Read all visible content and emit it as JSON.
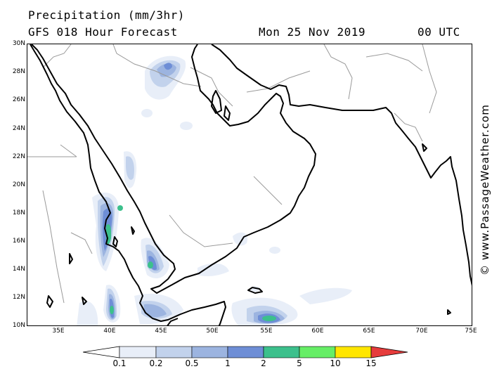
{
  "header": {
    "title": "Precipitation (mm/3hr)",
    "model": "GFS 018 Hour Forecast",
    "date": "Mon 25 Nov 2019",
    "time": "00 UTC"
  },
  "map": {
    "lat_labels": [
      "30N",
      "28N",
      "26N",
      "24N",
      "22N",
      "20N",
      "18N",
      "16N",
      "14N",
      "12N",
      "10N"
    ],
    "lon_labels": [
      "35E",
      "40E",
      "45E",
      "50E",
      "55E",
      "60E",
      "65E",
      "70E",
      "75E"
    ],
    "lat_range": [
      10,
      30
    ],
    "lon_range": [
      31.5,
      75
    ],
    "colors": {
      "land_border": "#000000",
      "political_border": "#9a9a9a",
      "precip_0_1": "#e8eef8",
      "precip_0_2": "#c2d2ec",
      "precip_0_5": "#9cb4e0",
      "precip_1": "#6e8ed6",
      "precip_2": "#3cc08c",
      "precip_5": "#66ee66"
    }
  },
  "credit": "© www.PassageWeather.com",
  "legend": {
    "labels": [
      "0.1",
      "0.2",
      "0.5",
      "1",
      "2",
      "5",
      "10",
      "15"
    ],
    "colors": [
      "#ffffff",
      "#e8eef8",
      "#c2d2ec",
      "#9cb4e0",
      "#6e8ed6",
      "#3cc08c",
      "#66ee66",
      "#ffe600",
      "#ff9900",
      "#e63c3c"
    ]
  }
}
